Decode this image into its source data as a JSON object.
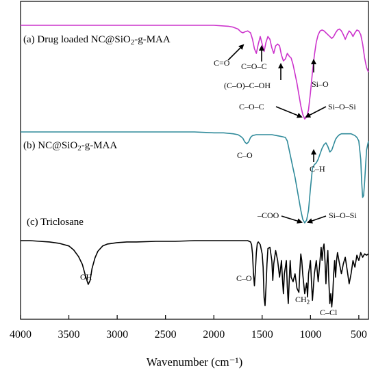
{
  "chart_data": {
    "type": "line",
    "xlabel": "Wavenumber (cm⁻¹)",
    "ylabel": "",
    "xlim": [
      4000,
      400
    ],
    "x_reversed": true,
    "x_ticks": [
      4000,
      3500,
      3000,
      2500,
      2000,
      1500,
      1000,
      500
    ],
    "x_tick_labels": [
      "4000",
      "3500",
      "3000",
      "2500",
      "2000",
      "1500",
      "1000",
      "500"
    ],
    "y_ticks_shown": false,
    "grid": false,
    "legend": "none",
    "series": [
      {
        "name": "(a) Drug loaded NC@SiO₂-g-MAA",
        "name_main": "(a) Drug loaded NC@SiO",
        "name_sub": "2",
        "name_tail": "-g-MAA",
        "color": "#cc33cc",
        "x": [
          4000,
          3800,
          3600,
          3400,
          3200,
          3000,
          2800,
          2600,
          2400,
          2200,
          2000,
          1850,
          1800,
          1750,
          1720,
          1700,
          1680,
          1650,
          1620,
          1600,
          1580,
          1560,
          1540,
          1520,
          1500,
          1480,
          1460,
          1440,
          1420,
          1400,
          1380,
          1360,
          1340,
          1320,
          1300,
          1280,
          1260,
          1240,
          1220,
          1200,
          1180,
          1160,
          1140,
          1120,
          1100,
          1080,
          1060,
          1040,
          1020,
          1000,
          980,
          960,
          940,
          920,
          900,
          880,
          860,
          840,
          820,
          800,
          780,
          760,
          740,
          720,
          700,
          680,
          660,
          640,
          620,
          600,
          580,
          560,
          540,
          520,
          500,
          480,
          460,
          440,
          420,
          400
        ],
        "y": [
          0.0,
          0.0,
          0.0,
          0.0,
          0.0,
          0.0,
          0.0,
          0.0,
          0.0,
          0.0,
          0.0,
          0.01,
          0.02,
          0.04,
          0.07,
          0.08,
          0.07,
          0.06,
          0.08,
          0.15,
          0.25,
          0.3,
          0.2,
          0.12,
          0.2,
          0.28,
          0.18,
          0.12,
          0.15,
          0.24,
          0.3,
          0.22,
          0.2,
          0.22,
          0.32,
          0.38,
          0.36,
          0.3,
          0.33,
          0.35,
          0.42,
          0.52,
          0.62,
          0.74,
          0.86,
          0.95,
          1.0,
          0.98,
          0.9,
          0.72,
          0.5,
          0.32,
          0.18,
          0.1,
          0.06,
          0.05,
          0.06,
          0.08,
          0.1,
          0.12,
          0.14,
          0.12,
          0.08,
          0.05,
          0.04,
          0.06,
          0.1,
          0.15,
          0.1,
          0.06,
          0.08,
          0.12,
          0.08,
          0.05,
          0.06,
          0.1,
          0.2,
          0.35,
          0.45,
          0.5
        ]
      },
      {
        "name": "(b) NC@SiO₂-g-MAA",
        "name_main": "(b) NC@SiO",
        "name_sub": "2",
        "name_tail": "-g-MAA",
        "color": "#2f8a9a",
        "x": [
          4000,
          3800,
          3600,
          3400,
          3200,
          3000,
          2800,
          2600,
          2400,
          2200,
          2000,
          1900,
          1800,
          1750,
          1720,
          1700,
          1680,
          1660,
          1640,
          1620,
          1600,
          1560,
          1500,
          1450,
          1400,
          1350,
          1300,
          1260,
          1240,
          1220,
          1200,
          1180,
          1160,
          1140,
          1120,
          1100,
          1080,
          1060,
          1040,
          1020,
          1000,
          980,
          960,
          940,
          920,
          900,
          880,
          860,
          840,
          820,
          800,
          780,
          760,
          740,
          720,
          700,
          680,
          660,
          640,
          620,
          600,
          580,
          560,
          540,
          520,
          500,
          480,
          470,
          460,
          450,
          440,
          420,
          400
        ],
        "y": [
          0.0,
          0.0,
          0.0,
          0.0,
          0.0,
          0.0,
          0.0,
          0.0,
          0.0,
          0.0,
          0.01,
          0.01,
          0.02,
          0.03,
          0.05,
          0.07,
          0.11,
          0.13,
          0.11,
          0.06,
          0.04,
          0.03,
          0.03,
          0.03,
          0.03,
          0.04,
          0.05,
          0.06,
          0.1,
          0.2,
          0.3,
          0.4,
          0.5,
          0.62,
          0.74,
          0.86,
          0.96,
          1.0,
          0.97,
          0.86,
          0.62,
          0.4,
          0.36,
          0.34,
          0.3,
          0.24,
          0.18,
          0.14,
          0.12,
          0.16,
          0.22,
          0.2,
          0.14,
          0.08,
          0.05,
          0.03,
          0.02,
          0.02,
          0.02,
          0.02,
          0.02,
          0.02,
          0.03,
          0.04,
          0.06,
          0.1,
          0.3,
          0.55,
          0.72,
          0.7,
          0.55,
          0.2,
          0.1
        ]
      },
      {
        "name": "(c) Triclosane",
        "color": "#000000",
        "x": [
          4000,
          3900,
          3800,
          3700,
          3600,
          3500,
          3450,
          3400,
          3360,
          3330,
          3300,
          3280,
          3260,
          3230,
          3200,
          3150,
          3100,
          3000,
          2900,
          2800,
          2600,
          2400,
          2200,
          2000,
          1900,
          1800,
          1700,
          1650,
          1620,
          1610,
          1600,
          1590,
          1580,
          1570,
          1560,
          1550,
          1540,
          1520,
          1500,
          1490,
          1480,
          1470,
          1460,
          1450,
          1440,
          1420,
          1400,
          1390,
          1380,
          1360,
          1340,
          1320,
          1300,
          1290,
          1280,
          1270,
          1250,
          1240,
          1230,
          1220,
          1210,
          1200,
          1180,
          1160,
          1140,
          1120,
          1110,
          1100,
          1090,
          1080,
          1060,
          1040,
          1030,
          1020,
          1000,
          990,
          980,
          960,
          940,
          920,
          900,
          890,
          880,
          870,
          860,
          850,
          840,
          830,
          820,
          810,
          800,
          790,
          780,
          770,
          760,
          750,
          740,
          730,
          720,
          700,
          680,
          660,
          640,
          620,
          600,
          580,
          560,
          540,
          520,
          500,
          480,
          460,
          440,
          420,
          400
        ],
        "y": [
          0.0,
          0.0,
          0.01,
          0.02,
          0.04,
          0.08,
          0.14,
          0.24,
          0.36,
          0.52,
          0.66,
          0.6,
          0.42,
          0.26,
          0.16,
          0.08,
          0.05,
          0.03,
          0.02,
          0.02,
          0.01,
          0.01,
          0.0,
          0.0,
          0.0,
          0.0,
          0.0,
          0.0,
          0.02,
          0.06,
          0.2,
          0.5,
          0.68,
          0.46,
          0.18,
          0.04,
          0.02,
          0.06,
          0.2,
          0.4,
          0.86,
          0.98,
          0.7,
          0.35,
          0.12,
          0.1,
          0.3,
          0.6,
          0.35,
          0.15,
          0.3,
          0.55,
          0.3,
          0.58,
          0.8,
          0.5,
          0.3,
          0.7,
          0.95,
          0.6,
          0.3,
          0.55,
          0.62,
          0.5,
          0.72,
          0.78,
          0.45,
          0.2,
          0.3,
          0.5,
          0.8,
          0.64,
          0.85,
          0.5,
          0.3,
          0.6,
          0.9,
          0.5,
          0.3,
          0.62,
          0.28,
          0.1,
          0.3,
          0.12,
          0.05,
          0.3,
          0.65,
          0.35,
          0.15,
          0.6,
          0.95,
          0.8,
          1.0,
          0.82,
          0.5,
          0.3,
          0.55,
          0.3,
          0.18,
          0.35,
          0.5,
          0.35,
          0.25,
          0.45,
          0.65,
          0.5,
          0.3,
          0.4,
          0.22,
          0.3,
          0.18,
          0.25,
          0.2,
          0.22,
          0.2
        ]
      }
    ],
    "annotations": [
      {
        "series": 0,
        "text": "C=O",
        "points_to_x": 1600
      },
      {
        "series": 0,
        "text": "C=O–C",
        "points_to_x": 1480
      },
      {
        "series": 0,
        "text": "(C–O)–C–OH",
        "points_to_x": 1250
      },
      {
        "series": 0,
        "text": "Si–O",
        "points_to_x": 950
      },
      {
        "series": 0,
        "text": "C–O–C",
        "points_to_x": 1070
      },
      {
        "series": 0,
        "text": "Si–O–Si",
        "points_to_x": 1040
      },
      {
        "series": 1,
        "text": "C–O",
        "points_to_x": 1650
      },
      {
        "series": 1,
        "text": "C–H",
        "points_to_x": 960
      },
      {
        "series": 1,
        "text": "–COO",
        "points_to_x": 1060
      },
      {
        "series": 1,
        "text": "Si–O–Si",
        "points_to_x": 1040
      },
      {
        "series": 2,
        "text": "OH",
        "points_to_x": 3300
      },
      {
        "series": 2,
        "text": "C–O",
        "points_to_x": 1590
      },
      {
        "series": 2,
        "text": "CH",
        "sub": "2",
        "points_to_x": 1230
      },
      {
        "series": 2,
        "text": "C–Cl",
        "points_to_x": 800
      }
    ]
  }
}
